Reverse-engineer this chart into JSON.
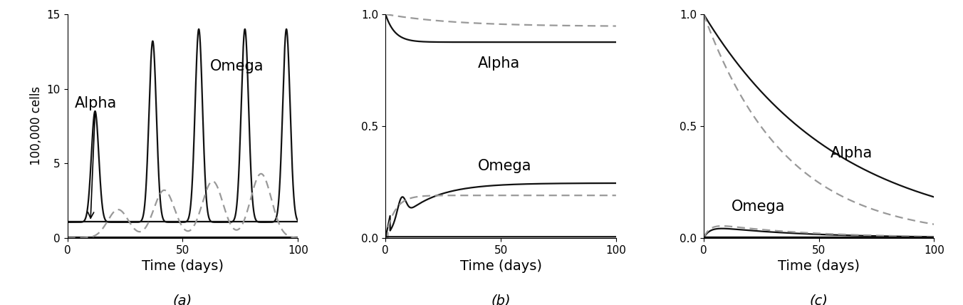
{
  "panel_a": {
    "ylim": [
      0,
      15
    ],
    "yticks": [
      0,
      5,
      10,
      15
    ],
    "ylabel": "100,000 cells",
    "xlabel": "Time (days)",
    "xlim": [
      0,
      100
    ],
    "xticks": [
      0,
      50,
      100
    ],
    "label": "(a)",
    "alpha_label": "Alpha",
    "omega_label": "Omega"
  },
  "panel_b": {
    "ylim": [
      0,
      1
    ],
    "yticks": [
      0,
      0.5,
      1
    ],
    "ylabel": "",
    "xlabel": "Time (days)",
    "xlim": [
      0,
      100
    ],
    "xticks": [
      0,
      50,
      100
    ],
    "label": "(b)",
    "alpha_label": "Alpha",
    "omega_label": "Omega"
  },
  "panel_c": {
    "ylim": [
      0,
      1
    ],
    "yticks": [
      0,
      0.5,
      1
    ],
    "ylabel": "",
    "xlabel": "Time (days)",
    "xlim": [
      0,
      100
    ],
    "xticks": [
      0,
      50,
      100
    ],
    "label": "(c)",
    "alpha_label": "Alpha",
    "omega_label": "Omega"
  },
  "solid_color": "#111111",
  "dashed_color": "#999999",
  "linewidth": 1.6,
  "dashed_linewidth": 1.6,
  "fontsize_xlabel": 14,
  "fontsize_ylabel": 12,
  "fontsize_annot": 15,
  "fontsize_sublabel": 14,
  "fontsize_tick": 11,
  "background": "#ffffff"
}
